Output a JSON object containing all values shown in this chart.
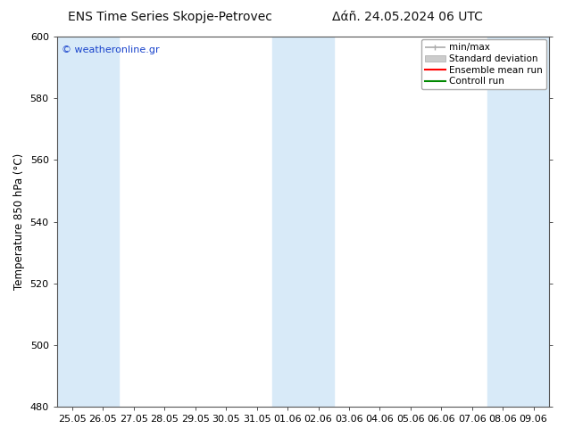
{
  "title_left": "ENS Time Series Skopje-Petrovec",
  "title_right": "Δάñ. 24.05.2024 06 UTC",
  "ylabel": "Temperature 850 hPa (°C)",
  "ylim": [
    480,
    600
  ],
  "yticks": [
    480,
    500,
    520,
    540,
    560,
    580,
    600
  ],
  "x_labels": [
    "25.05",
    "26.05",
    "27.05",
    "28.05",
    "29.05",
    "30.05",
    "31.05",
    "01.06",
    "02.06",
    "03.06",
    "04.06",
    "05.06",
    "06.06",
    "07.06",
    "08.06",
    "09.06"
  ],
  "shaded_indices": [
    0,
    1,
    7,
    8,
    14,
    15
  ],
  "bg_color": "#ffffff",
  "band_color": "#d8eaf8",
  "watermark": "© weatheronline.gr",
  "watermark_color": "#1a44cc",
  "minmax_color": "#aaaaaa",
  "std_color": "#cccccc",
  "ens_color": "#ff0000",
  "ctrl_color": "#008800",
  "spine_color": "#555555",
  "tick_color": "#333333",
  "title_fontsize": 10,
  "label_fontsize": 8.5,
  "tick_fontsize": 8,
  "legend_fontsize": 7.5
}
